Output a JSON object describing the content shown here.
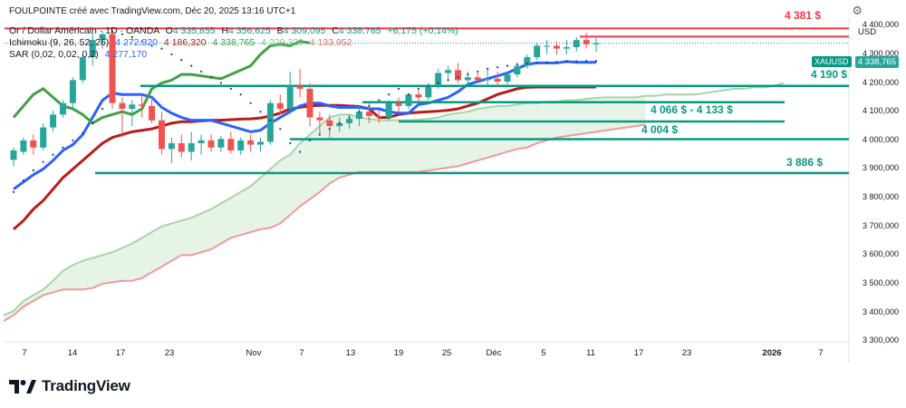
{
  "header": {
    "author_line": "FOULPOINTE créé avec TradingView.com, Déc 20, 2025 13:16 UTC+1",
    "symbol": "Or / Dollar Américain · 1D · OANDA",
    "open_label": "O",
    "open": "4 335,855",
    "high_label": "H",
    "high": "4 356,625",
    "low_label": "B",
    "low": "4 309,095",
    "close_label": "C",
    "close": "4 338,765",
    "change": "+6,175 (+0,14%)",
    "ichimoku_label": "Ichimoku (9, 26, 52, 26)",
    "ichimoku_values": [
      "4 272,320",
      "4 186,320",
      "4 338,765",
      "4 229,320",
      "4 133,952"
    ],
    "sar_label": "SAR (0,02, 0,02, 0,2)",
    "sar_value": "4 277,170"
  },
  "axis": {
    "currency": "USD",
    "current_symbol": "XAUUSD",
    "current_price": "4 338,765",
    "price_labels": [
      "4 400,000",
      "4 300,000",
      "4 200,000",
      "4 100,000",
      "4 000,000",
      "3 900,000",
      "3 800,000",
      "3 700,000",
      "3 600,000",
      "3 500,000",
      "3 400,000",
      "3 300,000"
    ],
    "date_labels": [
      "7",
      "14",
      "17",
      "23",
      "Nov",
      "7",
      "13",
      "19",
      "25",
      "Déc",
      "5",
      "11",
      "17",
      "23",
      "2026",
      "7"
    ]
  },
  "annotations": {
    "r1": "4 381 $",
    "r2": "4 190 $",
    "zone": "4 066 $ - 4 133 $",
    "s1": "4 004 $",
    "s2": "3 886 $"
  },
  "colors": {
    "up": "#26a69a",
    "down": "#ef5350",
    "conversion": "#2962ff",
    "base": "#b71c1c",
    "lagging": "#43a047",
    "spanA": "#a5d6a7",
    "spanB": "#ef9a9a",
    "resistance": "#f23645",
    "support": "#089981"
  },
  "branding": {
    "logo_text": "TradingView",
    "logo_icon": "tradingview-logo-icon"
  },
  "chart_data": {
    "type": "candlestick",
    "title": "Or / Dollar Américain · 1D · OANDA",
    "y_unit": "USD",
    "ylim": [
      3250,
      4420
    ],
    "date_axis": [
      "7",
      "14",
      "17",
      "23",
      "Nov",
      "7",
      "13",
      "19",
      "25",
      "Déc",
      "5",
      "11",
      "17",
      "23",
      "2026",
      "7"
    ],
    "candles": [
      {
        "o": 3932,
        "h": 3975,
        "l": 3910,
        "c": 3965
      },
      {
        "o": 3960,
        "h": 4010,
        "l": 3950,
        "c": 4000
      },
      {
        "o": 4000,
        "h": 4020,
        "l": 3950,
        "c": 3975
      },
      {
        "o": 3975,
        "h": 4060,
        "l": 3965,
        "c": 4045
      },
      {
        "o": 4045,
        "h": 4105,
        "l": 4030,
        "c": 4090
      },
      {
        "o": 4090,
        "h": 4140,
        "l": 4080,
        "c": 4130
      },
      {
        "o": 4130,
        "h": 4220,
        "l": 4110,
        "c": 4210
      },
      {
        "o": 4210,
        "h": 4300,
        "l": 4200,
        "c": 4290
      },
      {
        "o": 4290,
        "h": 4375,
        "l": 4260,
        "c": 4350
      },
      {
        "o": 4350,
        "h": 4381,
        "l": 4320,
        "c": 4370
      },
      {
        "o": 4370,
        "h": 4381,
        "l": 4110,
        "c": 4130
      },
      {
        "o": 4130,
        "h": 4150,
        "l": 4010,
        "c": 4110
      },
      {
        "o": 4110,
        "h": 4140,
        "l": 4050,
        "c": 4125
      },
      {
        "o": 4125,
        "h": 4160,
        "l": 4080,
        "c": 4120
      },
      {
        "o": 4120,
        "h": 4150,
        "l": 4060,
        "c": 4070
      },
      {
        "o": 4070,
        "h": 4100,
        "l": 3950,
        "c": 3970
      },
      {
        "o": 3970,
        "h": 4010,
        "l": 3920,
        "c": 3990
      },
      {
        "o": 3990,
        "h": 4020,
        "l": 3940,
        "c": 3960
      },
      {
        "o": 3960,
        "h": 4030,
        "l": 3930,
        "c": 3990
      },
      {
        "o": 3990,
        "h": 4020,
        "l": 3950,
        "c": 4000
      },
      {
        "o": 4000,
        "h": 4020,
        "l": 3960,
        "c": 3975
      },
      {
        "o": 3975,
        "h": 4015,
        "l": 3960,
        "c": 4005
      },
      {
        "o": 4005,
        "h": 4030,
        "l": 3955,
        "c": 3965
      },
      {
        "o": 3965,
        "h": 4010,
        "l": 3950,
        "c": 4000
      },
      {
        "o": 4000,
        "h": 4020,
        "l": 3960,
        "c": 3985
      },
      {
        "o": 3985,
        "h": 4010,
        "l": 3960,
        "c": 3995
      },
      {
        "o": 3995,
        "h": 4140,
        "l": 3985,
        "c": 4130
      },
      {
        "o": 4130,
        "h": 4160,
        "l": 4090,
        "c": 4110
      },
      {
        "o": 4110,
        "h": 4240,
        "l": 4100,
        "c": 4190
      },
      {
        "o": 4190,
        "h": 4250,
        "l": 4150,
        "c": 4180
      },
      {
        "o": 4180,
        "h": 4200,
        "l": 4050,
        "c": 4080
      },
      {
        "o": 4080,
        "h": 4100,
        "l": 4020,
        "c": 4070
      },
      {
        "o": 4070,
        "h": 4090,
        "l": 4010,
        "c": 4050
      },
      {
        "o": 4050,
        "h": 4080,
        "l": 4030,
        "c": 4060
      },
      {
        "o": 4060,
        "h": 4090,
        "l": 4040,
        "c": 4075
      },
      {
        "o": 4075,
        "h": 4120,
        "l": 4050,
        "c": 4100
      },
      {
        "o": 4100,
        "h": 4130,
        "l": 4060,
        "c": 4085
      },
      {
        "o": 4085,
        "h": 4110,
        "l": 4060,
        "c": 4080
      },
      {
        "o": 4080,
        "h": 4140,
        "l": 4070,
        "c": 4130
      },
      {
        "o": 4130,
        "h": 4150,
        "l": 4100,
        "c": 4120
      },
      {
        "o": 4120,
        "h": 4165,
        "l": 4110,
        "c": 4160
      },
      {
        "o": 4160,
        "h": 4175,
        "l": 4130,
        "c": 4150
      },
      {
        "o": 4150,
        "h": 4200,
        "l": 4140,
        "c": 4190
      },
      {
        "o": 4190,
        "h": 4250,
        "l": 4180,
        "c": 4235
      },
      {
        "o": 4235,
        "h": 4260,
        "l": 4210,
        "c": 4245
      },
      {
        "o": 4245,
        "h": 4270,
        "l": 4200,
        "c": 4210
      },
      {
        "o": 4210,
        "h": 4240,
        "l": 4190,
        "c": 4220
      },
      {
        "o": 4220,
        "h": 4240,
        "l": 4200,
        "c": 4210
      },
      {
        "o": 4210,
        "h": 4250,
        "l": 4190,
        "c": 4215
      },
      {
        "o": 4215,
        "h": 4240,
        "l": 4190,
        "c": 4205
      },
      {
        "o": 4205,
        "h": 4240,
        "l": 4195,
        "c": 4230
      },
      {
        "o": 4230,
        "h": 4270,
        "l": 4220,
        "c": 4260
      },
      {
        "o": 4260,
        "h": 4300,
        "l": 4250,
        "c": 4290
      },
      {
        "o": 4290,
        "h": 4340,
        "l": 4280,
        "c": 4330
      },
      {
        "o": 4330,
        "h": 4350,
        "l": 4300,
        "c": 4330
      },
      {
        "o": 4330,
        "h": 4345,
        "l": 4300,
        "c": 4320
      },
      {
        "o": 4320,
        "h": 4350,
        "l": 4300,
        "c": 4325
      },
      {
        "o": 4325,
        "h": 4360,
        "l": 4310,
        "c": 4350
      },
      {
        "o": 4350,
        "h": 4375,
        "l": 4320,
        "c": 4335
      },
      {
        "o": 4335,
        "h": 4357,
        "l": 4309,
        "c": 4339
      }
    ],
    "series": [
      {
        "name": "Ligne de conversion",
        "values": [
          3830,
          3855,
          3880,
          3900,
          3930,
          3965,
          3985,
          4020,
          4080,
          4140,
          4165,
          4160,
          4160,
          4160,
          4150,
          4115,
          4095,
          4080,
          4070,
          4070,
          4070,
          4060,
          4050,
          4040,
          4030,
          4035,
          4060,
          4080,
          4100,
          4120,
          4130,
          4130,
          4120,
          4115,
          4115,
          4115,
          4110,
          4110,
          4100,
          4095,
          4095,
          4125,
          4130,
          4140,
          4150,
          4170,
          4195,
          4205,
          4215,
          4225,
          4235,
          4250,
          4265,
          4270,
          4270,
          4270,
          4275,
          4272,
          4272,
          4272
        ]
      },
      {
        "name": "Ligne de base",
        "values": [
          3690,
          3720,
          3760,
          3790,
          3830,
          3870,
          3900,
          3930,
          3960,
          3990,
          4010,
          4020,
          4030,
          4035,
          4040,
          4050,
          4060,
          4065,
          4065,
          4068,
          4070,
          4070,
          4072,
          4074,
          4075,
          4078,
          4085,
          4095,
          4110,
          4115,
          4120,
          4122,
          4122,
          4122,
          4120,
          4118,
          4110,
          4080,
          4080,
          4090,
          4095,
          4098,
          4100,
          4102,
          4105,
          4110,
          4120,
          4130,
          4145,
          4160,
          4170,
          4180,
          4185,
          4186,
          4186,
          4186,
          4186,
          4186,
          4186,
          4186
        ]
      },
      {
        "name": "Lagging span",
        "values": [
          4080,
          4120,
          4160,
          4180,
          4150,
          4120,
          4110,
          4090,
          4060,
          4080,
          4090,
          4100,
          4090,
          4110,
          4180,
          4200,
          4210,
          4230,
          4230,
          4225,
          4220,
          4215,
          4230,
          4245,
          4260,
          4300,
          4330,
          4335,
          4330,
          4345,
          4340
        ]
      },
      {
        "name": "Leading span A",
        "values": [
          3390,
          3405,
          3440,
          3460,
          3480,
          3510,
          3545,
          3565,
          3580,
          3590,
          3600,
          3610,
          3625,
          3640,
          3660,
          3680,
          3700,
          3710,
          3720,
          3730,
          3745,
          3760,
          3780,
          3800,
          3820,
          3840,
          3870,
          3900,
          3930,
          3950,
          3990,
          4020,
          4050,
          4080,
          4090,
          4090,
          4080,
          4075,
          4070,
          4070,
          4070,
          4070,
          4072,
          4075,
          4080,
          4090,
          4095,
          4100,
          4110,
          4115,
          4120,
          4120,
          4125,
          4130,
          4130,
          4135,
          4135,
          4140,
          4140,
          4145,
          4148,
          4150,
          4150,
          4150,
          4150,
          4155,
          4155,
          4160,
          4160,
          4160,
          4160,
          4165,
          4170,
          4175,
          4180,
          4180,
          4185,
          4185,
          4190,
          4200
        ]
      },
      {
        "name": "Leading span B",
        "values": [
          3370,
          3390,
          3420,
          3440,
          3460,
          3470,
          3480,
          3480,
          3480,
          3485,
          3500,
          3505,
          3510,
          3510,
          3520,
          3540,
          3560,
          3580,
          3600,
          3600,
          3610,
          3620,
          3640,
          3660,
          3670,
          3680,
          3690,
          3695,
          3710,
          3740,
          3770,
          3795,
          3820,
          3850,
          3870,
          3880,
          3890,
          3890,
          3890,
          3890,
          3890,
          3890,
          3890,
          3895,
          3900,
          3905,
          3910,
          3920,
          3930,
          3940,
          3950,
          3960,
          3970,
          3975,
          3990,
          4000,
          4010,
          4015,
          4020,
          4025,
          4030,
          4035,
          4040,
          4045,
          4050,
          4055
        ]
      },
      {
        "name": "SAR",
        "values": [
          3820,
          3860,
          3895,
          3925,
          3950,
          3975,
          4000,
          4025,
          4060,
          4110,
          4381,
          4370,
          4360,
          4345,
          4330,
          4320,
          4300,
          4280,
          4260,
          4240,
          4220,
          4200,
          4180,
          4160,
          4130,
          4100,
          4070,
          4040,
          3990,
          3960,
          4000,
          4020,
          4040,
          4060,
          4080,
          4100,
          4120,
          4140,
          4160,
          4180,
          4160,
          4180,
          4190,
          4200,
          4210,
          4220,
          4230,
          4240,
          4250,
          4255,
          4260,
          4265,
          4268,
          4270,
          4272,
          4274,
          4275,
          4276,
          4277,
          4277
        ]
      }
    ],
    "levels": [
      {
        "label": "4 381 $",
        "value": 4381,
        "kind": "resistance"
      },
      {
        "label": "4 190 $",
        "value": 4190,
        "kind": "support"
      },
      {
        "label": "4 066 $ - 4 133 $",
        "value_high": 4133,
        "value_low": 4066,
        "kind": "support-zone"
      },
      {
        "label": "4 004 $",
        "value": 4004,
        "kind": "support"
      },
      {
        "label": "3 886 $",
        "value": 3886,
        "kind": "support"
      }
    ],
    "grid": false
  }
}
